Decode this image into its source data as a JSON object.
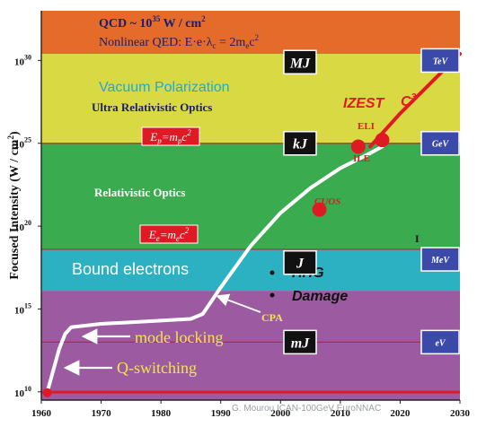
{
  "chart_data": {
    "type": "line",
    "ylabel": "Focused Intensity (W / cm",
    "ylabel_sup": "2",
    "ylabel_close": ")",
    "credit": "G. Mourou ICAN-100GeV EuroNNAC",
    "x_ticks": [
      "1960",
      "1970",
      "1980",
      "1990",
      "2000",
      "2010",
      "2020",
      "2030"
    ],
    "xlim": [
      1960,
      2030
    ],
    "ylim_log10": [
      9.5,
      33
    ],
    "y_ticks": [
      {
        "exp": 10,
        "base": "10",
        "sup": "10"
      },
      {
        "exp": 15,
        "base": "10",
        "sup": "15"
      },
      {
        "exp": 20,
        "base": "10",
        "sup": "20"
      },
      {
        "exp": 25,
        "base": "10",
        "sup": "25"
      },
      {
        "exp": 30,
        "base": "10",
        "sup": "30"
      }
    ],
    "bands": [
      {
        "from": 30.4,
        "to": 33,
        "color": "#e56b2b"
      },
      {
        "from": 25.0,
        "to": 30.4,
        "color": "#d9d943"
      },
      {
        "from": 18.6,
        "to": 25.0,
        "color": "#3aac4f"
      },
      {
        "from": 16.1,
        "to": 18.6,
        "color": "#2cb1c3"
      },
      {
        "from": 9.5,
        "to": 16.1,
        "color": "#9c5aa0"
      }
    ],
    "band_lines": [
      {
        "y": 25.0,
        "color": "#d11f2c"
      },
      {
        "y": 18.6,
        "color": "#d11f2c"
      },
      {
        "y": 13.0,
        "color": "#d11f2c"
      },
      {
        "y": 9.98,
        "color": "#e01a24"
      }
    ],
    "labels": {
      "qcd": "QCD ~ 10",
      "qcd_sup": "35",
      "qcd_unit": " W / cm",
      "qcd_unit_sup": "2",
      "nonlinear": "Nonlinear QED: E·e·λ",
      "nonlinear_sub": "c",
      "nonlinear_eq": " = 2m",
      "nonlinear_eq_sub": "e",
      "nonlinear_end": "c",
      "nonlinear_end_sup": "2",
      "vacuum": "Vacuum Polarization",
      "ultra": "Ultra Relativistic Optics",
      "relativistic": "Relativistic Optics",
      "bound": "Bound electrons",
      "hhg": "HHG",
      "damage": "Damage",
      "izest": "IZEST",
      "c3": "C",
      "c3_sup": "3",
      "eli": "ELI",
      "ile": "ILE",
      "cuos": "CUOS",
      "cpa": "CPA",
      "mode_locking": "mode locking",
      "q_switching": "Q-switching",
      "ep": "E",
      "ep_sub": "p",
      "ep_eq": "=m",
      "ep_eq_sub": "p",
      "ep_c": "c",
      "ep_c_sup": "2",
      "ee": "E",
      "ee_sub": "e",
      "ee_eq": "=m",
      "ee_eq_sub": "e",
      "ee_c": "c",
      "ee_c_sup": "2",
      "edge_i": "I"
    },
    "energy_boxes": [
      {
        "label": "MJ",
        "y": 29.9
      },
      {
        "label": "kJ",
        "y": 25.0
      },
      {
        "label": "J",
        "y": 17.8
      },
      {
        "label": "mJ",
        "y": 13.0
      }
    ],
    "particle_boxes": [
      {
        "label": "TeV",
        "y": 30.0
      },
      {
        "label": "GeV",
        "y": 25.0
      },
      {
        "label": "MeV",
        "y": 18.0
      },
      {
        "label": "eV",
        "y": 13.0
      }
    ],
    "series": [
      {
        "color": "#ffffff",
        "x": [
          1961,
          1962,
          1963,
          1964,
          1965,
          1970,
          1975,
          1980,
          1985,
          1987,
          1990,
          1995,
          2000,
          2005,
          2010,
          2015,
          2017
        ],
        "y": [
          10.0,
          11.3,
          12.6,
          13.5,
          13.9,
          14.1,
          14.2,
          14.3,
          14.4,
          14.7,
          16.3,
          18.8,
          20.8,
          22.3,
          23.5,
          24.4,
          24.8
        ]
      },
      {
        "color": "#e01a24",
        "x": [
          2015,
          2020,
          2025,
          2030
        ],
        "y": [
          24.8,
          26.8,
          28.6,
          30.4
        ]
      }
    ],
    "points": [
      {
        "x": 1961,
        "y": 9.95,
        "label": ""
      },
      {
        "x": 2006.5,
        "y": 21.0,
        "label": "CUOS"
      },
      {
        "x": 2013,
        "y": 24.8,
        "label": "ILE"
      },
      {
        "x": 2017,
        "y": 25.2,
        "label": "ELI"
      }
    ],
    "bullets": [
      "HHG",
      "Damage"
    ],
    "colors": {
      "navy": "#1b1d6e",
      "label_red": "#e01a24",
      "box_black": "#111111",
      "box_blue": "#3b4aa8",
      "vacuum_text": "#20a9d6"
    }
  }
}
